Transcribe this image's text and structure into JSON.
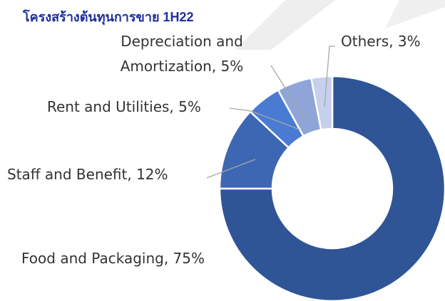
{
  "chart_data": {
    "type": "pie",
    "title": "โครงสร้างต้นทุนการขาย 1H22",
    "values": [
      75,
      12,
      5,
      5,
      3
    ],
    "value_labels": [
      "Food and Packaging, 75%",
      "Staff and Benefit, 12%",
      "Rent and Utilities, 5%",
      "Depreciation and\nAmortization, 5%",
      "Others, 3%"
    ],
    "colors": [
      "#2f5597",
      "#3e67b3",
      "#4a7bd3",
      "#8fa5d8",
      "#c6d0ec"
    ],
    "donut": true
  }
}
